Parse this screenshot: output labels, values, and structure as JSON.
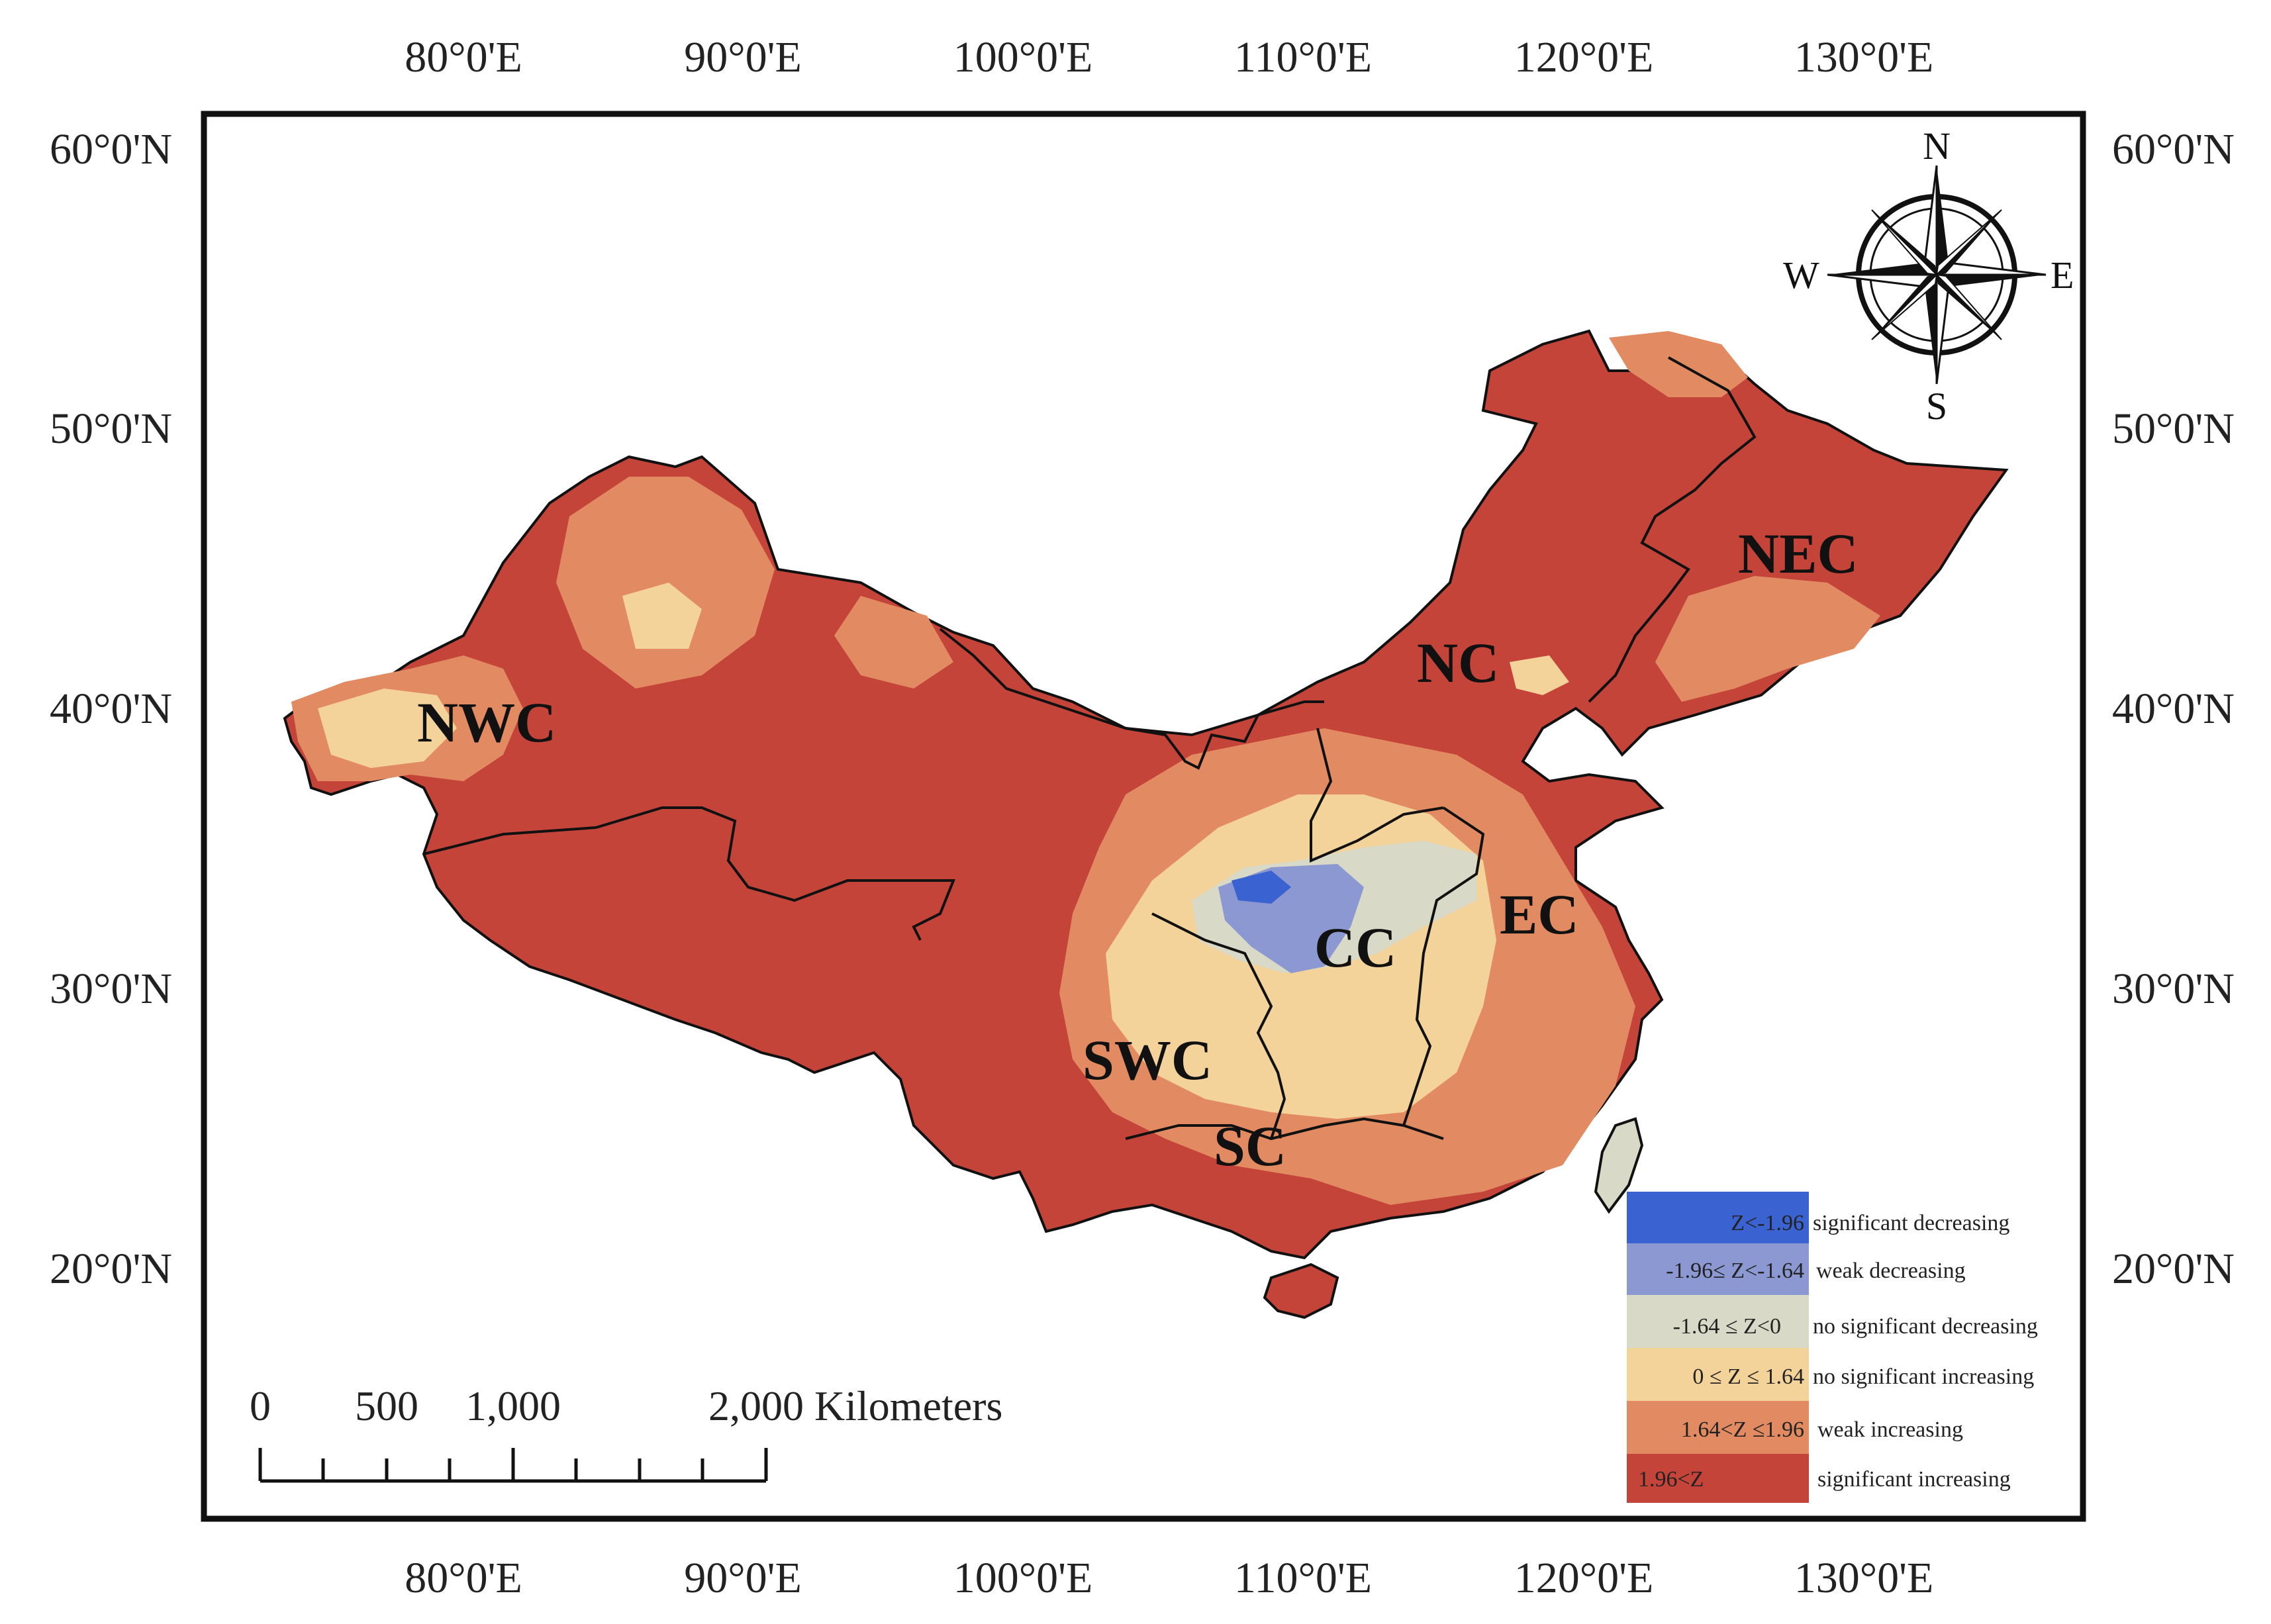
{
  "map": {
    "longitude_labels": [
      "80°0'E",
      "90°0'E",
      "100°0'E",
      "110°0'E",
      "120°0'E",
      "130°0'E"
    ],
    "latitude_labels": [
      "60°0'N",
      "50°0'N",
      "40°0'N",
      "30°0'N",
      "20°0'N"
    ],
    "regions": [
      "NWC",
      "NC",
      "NEC",
      "CC",
      "EC",
      "SWC",
      "SC"
    ]
  },
  "compass": {
    "n": "N",
    "s": "S",
    "e": "E",
    "w": "W"
  },
  "scale_bar": {
    "labels": [
      "0",
      "500",
      "1,000",
      "2,000 Kilometers"
    ]
  },
  "legend": {
    "items": [
      {
        "range": "Z<-1.96",
        "label": "significant decreasing",
        "color": "#3a62d1"
      },
      {
        "range": "-1.96≤ Z<-1.64",
        "label": "weak decreasing",
        "color": "#8c98d1"
      },
      {
        "range": "-1.64 ≤ Z<0",
        "label": "no significant decreasing",
        "color": "#d8d9c7"
      },
      {
        "range": "0 ≤ Z ≤ 1.64",
        "label": "no significant increasing",
        "color": "#f4d39b"
      },
      {
        "range": "1.64<Z ≤1.96",
        "label": "weak increasing",
        "color": "#e28b62"
      },
      {
        "range": "1.96<Z",
        "label": "significant increasing",
        "color": "#c4443a"
      }
    ]
  }
}
